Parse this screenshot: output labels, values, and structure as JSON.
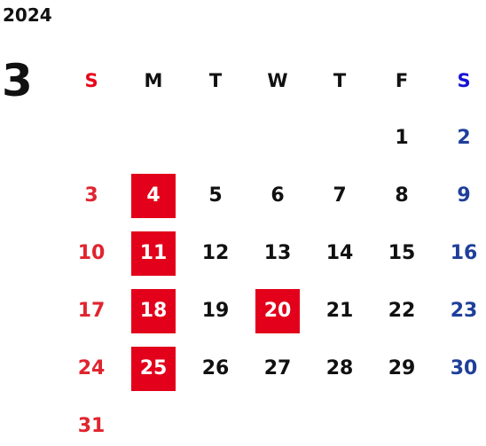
{
  "calendar": {
    "year": "2024",
    "month": "3",
    "weekdays": [
      "S",
      "M",
      "T",
      "W",
      "T",
      "F",
      "S"
    ],
    "weeks": [
      [
        "",
        "",
        "",
        "",
        "",
        "1",
        "2"
      ],
      [
        "3",
        "4",
        "5",
        "6",
        "7",
        "8",
        "9"
      ],
      [
        "10",
        "11",
        "12",
        "13",
        "14",
        "15",
        "16"
      ],
      [
        "17",
        "18",
        "19",
        "20",
        "21",
        "22",
        "23"
      ],
      [
        "24",
        "25",
        "26",
        "27",
        "28",
        "29",
        "30"
      ],
      [
        "31",
        "",
        "",
        "",
        "",
        "",
        ""
      ]
    ],
    "highlighted_days": [
      "4",
      "11",
      "18",
      "20",
      "25"
    ],
    "colors": {
      "sunday": "#e0242f",
      "saturday": "#1f3f9a",
      "highlight": "#e2001a"
    }
  }
}
